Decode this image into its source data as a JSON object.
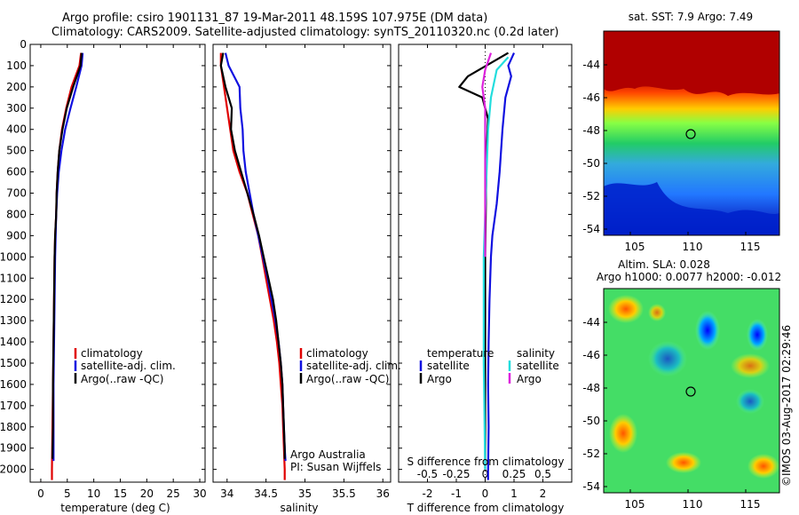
{
  "header": {
    "line1": "Argo profile: csiro 1901131_87 19-Mar-2011 48.159S 107.975E (DM data)",
    "line2": "Climatology: CARS2009. Satellite-adjusted climatology: synTS_20110320.nc (0.2d later)"
  },
  "colors": {
    "climatology": "#e00000",
    "satellite": "#1010e0",
    "argo": "#000000",
    "sat_salinity": "#22dddd",
    "argo_salinity": "#dd22dd"
  },
  "chart_data": [
    {
      "id": "temperature",
      "type": "line",
      "xlabel": "temperature (deg C)",
      "ylabel": "",
      "xticks": [
        0,
        5,
        10,
        15,
        20,
        25,
        30
      ],
      "xlim": [
        -2,
        31
      ],
      "yticks": [
        0,
        100,
        200,
        300,
        400,
        500,
        600,
        700,
        800,
        900,
        1000,
        1100,
        1200,
        1300,
        1400,
        1500,
        1600,
        1700,
        1800,
        1900,
        2000
      ],
      "ylim": [
        2060,
        0
      ],
      "legend": [
        "climatology",
        "satellite-adj. clim.",
        "Argo(..raw -QC)"
      ],
      "series": [
        {
          "name": "climatology",
          "color": "#e00000",
          "points": [
            [
              7.6,
              40
            ],
            [
              7.3,
              100
            ],
            [
              5.8,
              200
            ],
            [
              4.8,
              300
            ],
            [
              4.0,
              400
            ],
            [
              3.5,
              500
            ],
            [
              3.2,
              600
            ],
            [
              3.0,
              700
            ],
            [
              2.9,
              800
            ],
            [
              2.7,
              900
            ],
            [
              2.6,
              1000
            ],
            [
              2.5,
              1200
            ],
            [
              2.4,
              1400
            ],
            [
              2.3,
              1600
            ],
            [
              2.2,
              1800
            ],
            [
              2.1,
              2000
            ],
            [
              2.1,
              2050
            ]
          ]
        },
        {
          "name": "satellite-adj. clim.",
          "color": "#1010e0",
          "points": [
            [
              7.9,
              40
            ],
            [
              7.7,
              100
            ],
            [
              6.7,
              200
            ],
            [
              5.6,
              300
            ],
            [
              4.6,
              400
            ],
            [
              3.9,
              500
            ],
            [
              3.4,
              600
            ],
            [
              3.1,
              700
            ],
            [
              2.9,
              800
            ],
            [
              2.8,
              900
            ],
            [
              2.7,
              1000
            ],
            [
              2.6,
              1200
            ],
            [
              2.5,
              1400
            ],
            [
              2.4,
              1600
            ],
            [
              2.4,
              1800
            ],
            [
              2.4,
              1960
            ]
          ]
        },
        {
          "name": "Argo(..raw -QC)",
          "color": "#000000",
          "points": [
            [
              7.7,
              40
            ],
            [
              7.5,
              100
            ],
            [
              6.1,
              200
            ],
            [
              4.9,
              300
            ],
            [
              4.1,
              400
            ],
            [
              3.5,
              500
            ],
            [
              3.2,
              600
            ],
            [
              3.0,
              700
            ],
            [
              2.9,
              800
            ],
            [
              2.7,
              900
            ],
            [
              2.6,
              1000
            ],
            [
              2.5,
              1200
            ],
            [
              2.4,
              1400
            ],
            [
              2.3,
              1600
            ],
            [
              2.3,
              1800
            ],
            [
              2.2,
              1950
            ]
          ]
        }
      ]
    },
    {
      "id": "salinity",
      "type": "line",
      "xlabel": "salinity",
      "ylabel": "",
      "xticks": [
        34,
        34.5,
        35,
        35.5,
        36
      ],
      "xlim": [
        33.82,
        36.1
      ],
      "yticks": [
        0,
        100,
        200,
        300,
        400,
        500,
        600,
        700,
        800,
        900,
        1000,
        1100,
        1200,
        1300,
        1400,
        1500,
        1600,
        1700,
        1800,
        1900,
        2000
      ],
      "ylim": [
        2060,
        0
      ],
      "legend": [
        "climatology",
        "satellite-adj. clim.",
        "Argo(..raw -QC)"
      ],
      "annotation": [
        "Argo Australia",
        "PI: Susan Wijffels"
      ],
      "series": [
        {
          "name": "climatology",
          "color": "#e00000",
          "points": [
            [
              33.92,
              40
            ],
            [
              33.92,
              100
            ],
            [
              33.96,
              200
            ],
            [
              34.0,
              300
            ],
            [
              34.04,
              400
            ],
            [
              34.08,
              500
            ],
            [
              34.16,
              600
            ],
            [
              34.26,
              700
            ],
            [
              34.33,
              800
            ],
            [
              34.4,
              900
            ],
            [
              34.45,
              1000
            ],
            [
              34.5,
              1100
            ],
            [
              34.55,
              1200
            ],
            [
              34.6,
              1300
            ],
            [
              34.64,
              1400
            ],
            [
              34.67,
              1500
            ],
            [
              34.69,
              1600
            ],
            [
              34.71,
              1700
            ],
            [
              34.72,
              1800
            ],
            [
              34.73,
              1900
            ],
            [
              34.74,
              2000
            ],
            [
              34.74,
              2050
            ]
          ]
        },
        {
          "name": "satellite-adj. clim.",
          "color": "#1010e0",
          "points": [
            [
              33.98,
              40
            ],
            [
              34.02,
              100
            ],
            [
              34.16,
              200
            ],
            [
              34.17,
              300
            ],
            [
              34.2,
              400
            ],
            [
              34.21,
              500
            ],
            [
              34.24,
              600
            ],
            [
              34.29,
              700
            ],
            [
              34.34,
              800
            ],
            [
              34.4,
              900
            ],
            [
              34.46,
              1000
            ],
            [
              34.52,
              1100
            ],
            [
              34.57,
              1200
            ],
            [
              34.62,
              1300
            ],
            [
              34.66,
              1400
            ],
            [
              34.69,
              1500
            ],
            [
              34.71,
              1600
            ],
            [
              34.72,
              1700
            ],
            [
              34.73,
              1800
            ],
            [
              34.74,
              1900
            ],
            [
              34.75,
              1960
            ]
          ]
        },
        {
          "name": "Argo(..raw -QC)",
          "color": "#000000",
          "points": [
            [
              33.95,
              40
            ],
            [
              33.92,
              100
            ],
            [
              33.98,
              200
            ],
            [
              34.06,
              300
            ],
            [
              34.05,
              400
            ],
            [
              34.1,
              500
            ],
            [
              34.18,
              600
            ],
            [
              34.26,
              700
            ],
            [
              34.34,
              800
            ],
            [
              34.41,
              900
            ],
            [
              34.47,
              1000
            ],
            [
              34.53,
              1100
            ],
            [
              34.59,
              1200
            ],
            [
              34.63,
              1300
            ],
            [
              34.66,
              1400
            ],
            [
              34.69,
              1500
            ],
            [
              34.71,
              1600
            ],
            [
              34.72,
              1700
            ],
            [
              34.73,
              1800
            ],
            [
              34.74,
              1900
            ],
            [
              34.74,
              1950
            ]
          ]
        }
      ]
    },
    {
      "id": "difference",
      "type": "line",
      "xlabel": "T difference from climatology",
      "xlabel_top": "S difference from climatology",
      "xticks": [
        -2,
        -1,
        0,
        1,
        2
      ],
      "xtick_labels": [
        "-2",
        "-1",
        "0",
        "1",
        "2"
      ],
      "xticks_s": [
        -0.5,
        -0.25,
        0,
        0.25,
        0.5
      ],
      "xtick_labels_s": [
        "-0.5",
        "-0.25",
        "0",
        "0.25",
        "0.5"
      ],
      "xlim": [
        -3.0,
        3.0
      ],
      "ylim": [
        2060,
        0
      ],
      "legend_left_title": "temperature",
      "legend_right_title": "salinity",
      "legend_left": [
        "satellite",
        "Argo"
      ],
      "legend_right": [
        "satellite",
        "Argo"
      ],
      "series": [
        {
          "name": "T satellite",
          "color": "#1010e0",
          "points": [
            [
              1.0,
              40
            ],
            [
              0.8,
              100
            ],
            [
              0.9,
              150
            ],
            [
              0.7,
              250
            ],
            [
              0.6,
              400
            ],
            [
              0.5,
              600
            ],
            [
              0.4,
              750
            ],
            [
              0.25,
              900
            ],
            [
              0.2,
              1000
            ],
            [
              0.15,
              1200
            ],
            [
              0.12,
              1400
            ],
            [
              0.1,
              1600
            ],
            [
              0.12,
              1800
            ],
            [
              0.1,
              2000
            ],
            [
              0.1,
              2050
            ]
          ]
        },
        {
          "name": "T Argo",
          "color": "#000000",
          "points": [
            [
              0.8,
              40
            ],
            [
              -0.6,
              150
            ],
            [
              -0.9,
              200
            ],
            [
              -0.1,
              250
            ],
            [
              0.0,
              300
            ],
            [
              0.1,
              350
            ],
            [
              0.05,
              500
            ],
            [
              0.0,
              1000
            ],
            [
              0.0,
              1500
            ],
            [
              0.0,
              2000
            ]
          ]
        },
        {
          "name": "S satellite",
          "color": "#22dddd",
          "points": [
            [
              0.8,
              60
            ],
            [
              0.4,
              120
            ],
            [
              0.2,
              250
            ],
            [
              0.1,
              400
            ],
            [
              0.05,
              600
            ],
            [
              0.0,
              800
            ],
            [
              -0.05,
              1000
            ],
            [
              -0.05,
              1500
            ],
            [
              0.0,
              2000
            ]
          ]
        },
        {
          "name": "S Argo",
          "color": "#dd22dd",
          "points": [
            [
              0.2,
              40
            ],
            [
              0.0,
              120
            ],
            [
              -0.1,
              200
            ],
            [
              0.0,
              300
            ],
            [
              0.0,
              400
            ],
            [
              0.0,
              600
            ],
            [
              0.0,
              800
            ],
            [
              0.0,
              1000
            ]
          ]
        }
      ]
    }
  ],
  "maps": {
    "sst": {
      "title": "sat. SST: 7.9 Argo: 7.49",
      "yticks": [
        "-44",
        "-46",
        "-48",
        "-50",
        "-52",
        "-54"
      ],
      "xticks": [
        "105",
        "110",
        "115"
      ]
    },
    "sla": {
      "title1": "Altim. SLA: 0.028",
      "title2": "Argo h1000: 0.0077 h2000: -0.012",
      "yticks": [
        "-44",
        "-46",
        "-48",
        "-50",
        "-52",
        "-54"
      ],
      "xticks": [
        "105",
        "110",
        "115"
      ]
    }
  },
  "credit": "©IMOS 03-Aug-2017 02:29:46"
}
